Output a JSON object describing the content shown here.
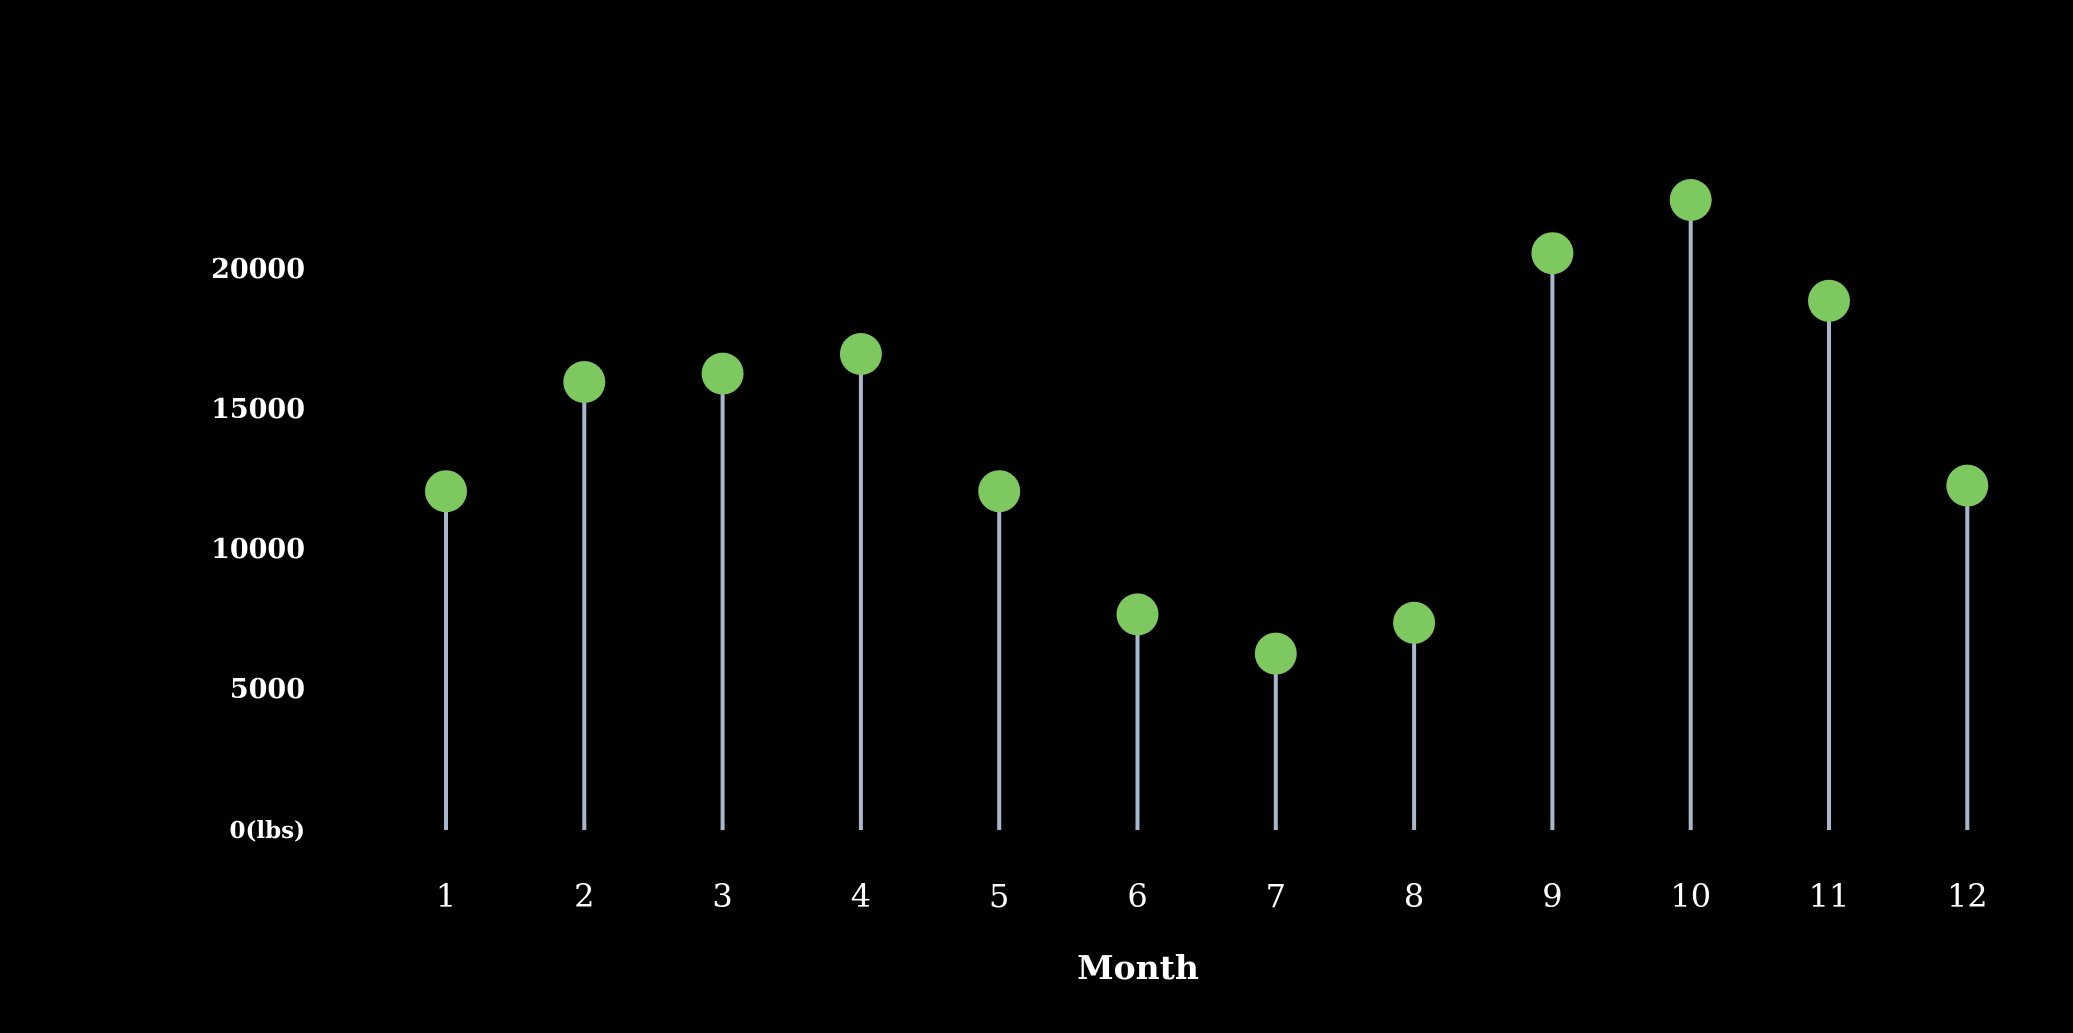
{
  "chart_data": {
    "type": "lollipop",
    "title": "",
    "xlabel": "Month",
    "ylabel": "",
    "categories": [
      "1",
      "2",
      "3",
      "4",
      "5",
      "6",
      "7",
      "8",
      "9",
      "10",
      "11",
      "12"
    ],
    "values": [
      12100,
      16000,
      16300,
      17000,
      12100,
      7700,
      6300,
      7400,
      20600,
      22500,
      18900,
      12300
    ],
    "ylim": [
      0,
      22500
    ],
    "yticks": [
      0,
      5000,
      10000,
      15000,
      20000
    ],
    "ytick_labels": [
      "0(lbs)",
      "5000",
      "10000",
      "15000",
      "20000"
    ],
    "grid": false,
    "colors": {
      "background": "#000000",
      "marker": "#7ec860",
      "stem": "#a8b8cc",
      "text": "#ffffff"
    }
  }
}
